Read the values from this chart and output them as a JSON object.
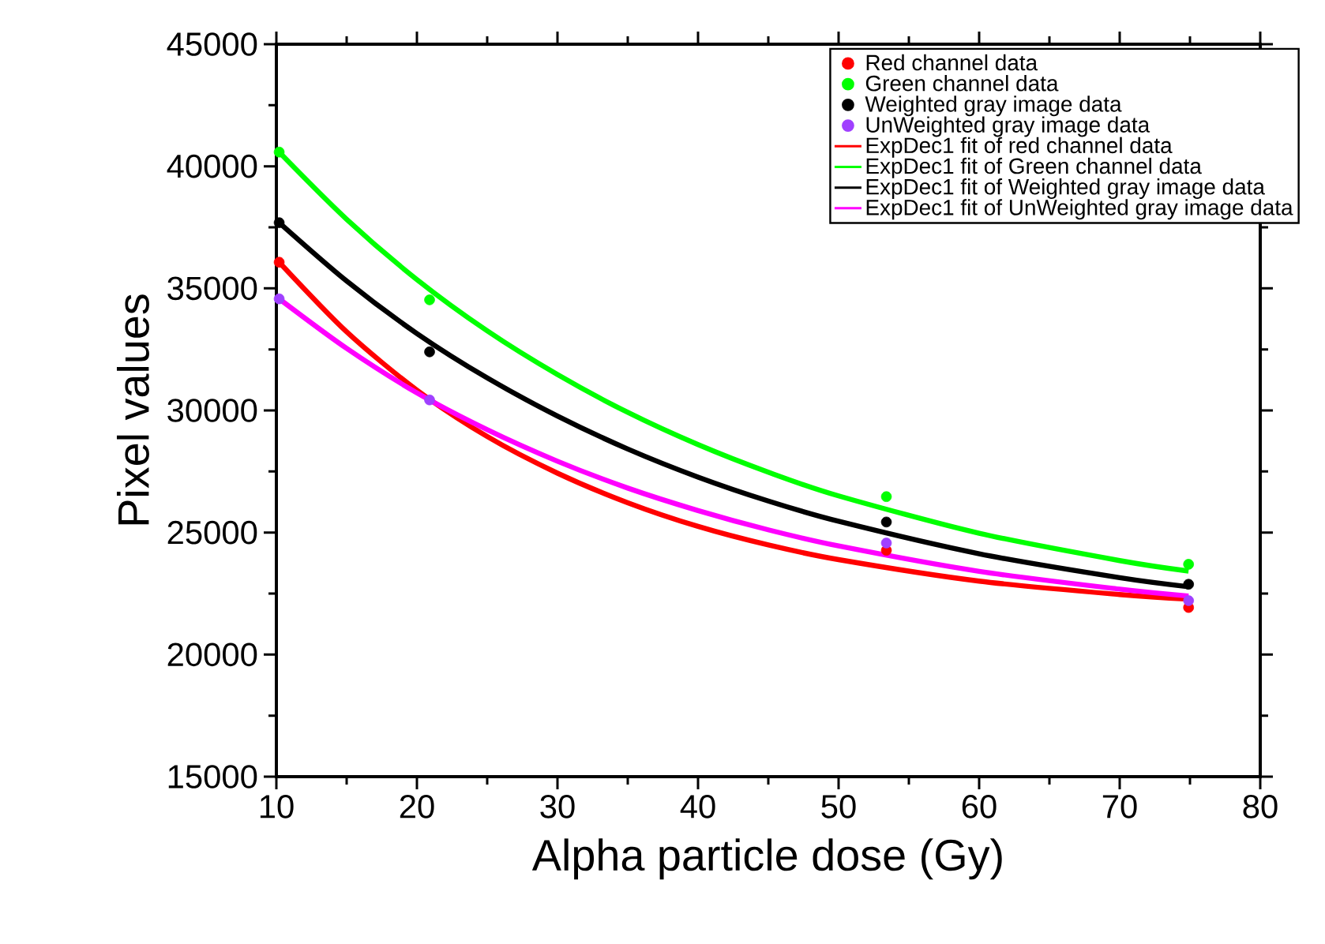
{
  "chart_data": {
    "type": "scatter",
    "xlabel": "Alpha particle dose (Gy)",
    "ylabel": "Pixel values",
    "x": [
      10.2,
      20.9,
      53.4,
      74.9
    ],
    "series": [
      {
        "name": "Red channel data",
        "color": "#ff0000",
        "values": [
          36070,
          null,
          24270,
          21930
        ]
      },
      {
        "name": "Green channel data",
        "color": "#00ff00",
        "values": [
          40580,
          34530,
          26470,
          23700
        ]
      },
      {
        "name": "Weighted gray image data",
        "color": "#000000",
        "values": [
          37690,
          32400,
          25430,
          22880
        ]
      },
      {
        "name": "UnWeighted gray image data",
        "color": "#a040ff",
        "values": [
          34570,
          30430,
          24570,
          22210
        ]
      },
      {
        "name": "ExpDec1 fit of red channel data",
        "type": "line",
        "marker": "none",
        "color": "#ff0000",
        "x": [
          10.2,
          15,
          20,
          25,
          30,
          35,
          40,
          45,
          50,
          60,
          70,
          74.9
        ],
        "values": [
          36070,
          33220,
          30830,
          28930,
          27430,
          26220,
          25250,
          24490,
          23890,
          23010,
          22460,
          22270
        ]
      },
      {
        "name": "ExpDec1 fit of Green channel data",
        "type": "line",
        "marker": "none",
        "color": "#00ff00",
        "x": [
          10.2,
          15,
          20,
          25,
          30,
          35,
          40,
          45,
          50,
          60,
          70,
          74.9
        ],
        "values": [
          40580,
          37830,
          35360,
          33260,
          31470,
          29920,
          28600,
          27470,
          26500,
          24970,
          23850,
          23420
        ]
      },
      {
        "name": "ExpDec1 fit of Weighted gray image data",
        "type": "line",
        "marker": "none",
        "color": "#000000",
        "x": [
          10.2,
          15,
          20,
          25,
          30,
          35,
          40,
          45,
          50,
          60,
          70,
          74.9
        ],
        "values": [
          37690,
          35300,
          33150,
          31330,
          29770,
          28420,
          27270,
          26290,
          25460,
          24130,
          23150,
          22780
        ]
      },
      {
        "name": "ExpDec1 fit of UnWeighted gray image data",
        "type": "line",
        "marker": "none",
        "color": "#ff00ff",
        "x": [
          10.2,
          15,
          20,
          25,
          30,
          35,
          40,
          45,
          50,
          60,
          70,
          74.9
        ],
        "values": [
          34570,
          32540,
          30720,
          29210,
          27920,
          26820,
          25900,
          25110,
          24450,
          23410,
          22680,
          22400
        ]
      }
    ],
    "xlim": [
      10,
      80
    ],
    "ylim": [
      15000,
      45000
    ],
    "xticks": [
      10,
      20,
      30,
      40,
      50,
      60,
      70,
      80
    ],
    "yticks": [
      15000,
      20000,
      25000,
      30000,
      35000,
      40000,
      45000
    ],
    "grid": false,
    "legend": "top right",
    "marker": "circle"
  }
}
